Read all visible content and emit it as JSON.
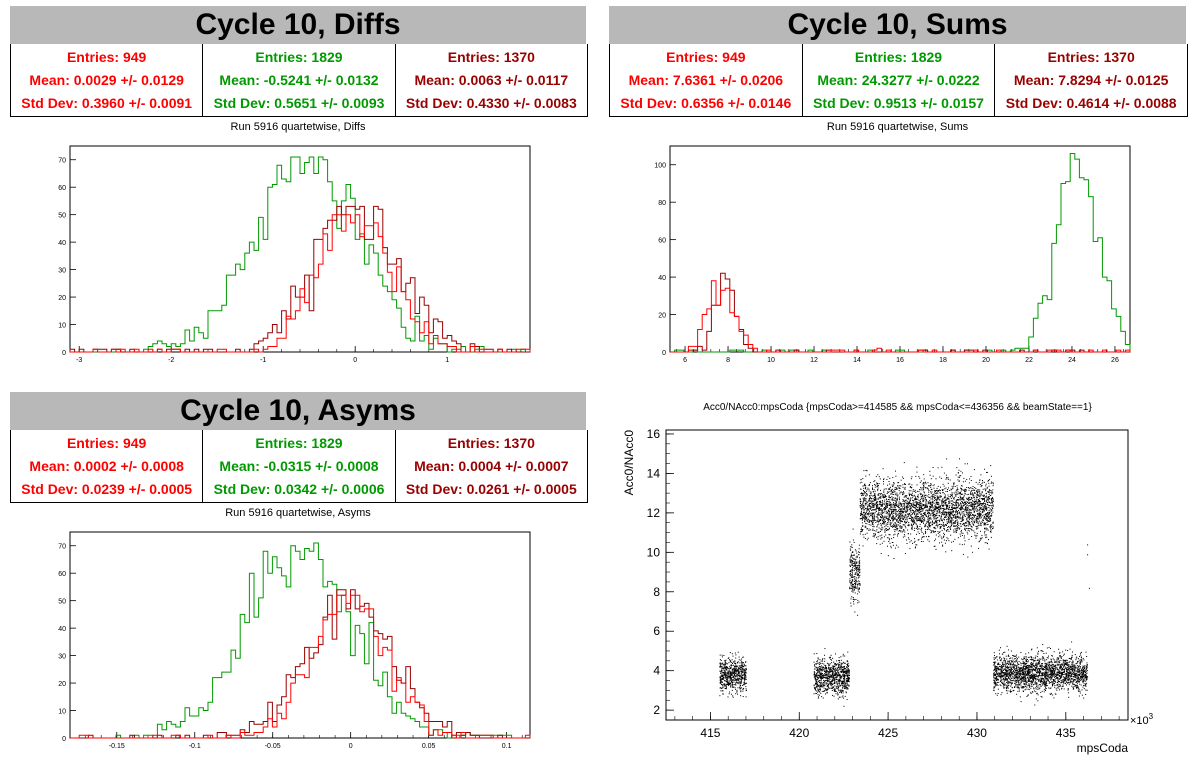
{
  "colors": {
    "red": "#ff0000",
    "green": "#009900",
    "darkred": "#990000",
    "title_bg": "#b8b8b8"
  },
  "panels": {
    "diffs": {
      "title": "Cycle 10, Diffs",
      "stats": [
        {
          "entries": "Entries: 949",
          "mean": "Mean: 0.0029 +/- 0.0129",
          "std": "Std Dev: 0.3960 +/- 0.0091"
        },
        {
          "entries": "Entries: 1829",
          "mean": "Mean: -0.5241 +/- 0.0132",
          "std": "Std Dev: 0.5651 +/- 0.0093"
        },
        {
          "entries": "Entries: 1370",
          "mean": "Mean: 0.0063 +/- 0.0117",
          "std": "Std Dev: 0.4330 +/- 0.0083"
        }
      ],
      "subtitle": "Run 5916 quartetwise, Diffs"
    },
    "sums": {
      "title": "Cycle 10, Sums",
      "stats": [
        {
          "entries": "Entries: 949",
          "mean": "Mean: 7.6361 +/- 0.0206",
          "std": "Std Dev: 0.6356 +/- 0.0146"
        },
        {
          "entries": "Entries: 1829",
          "mean": "Mean: 24.3277 +/- 0.0222",
          "std": "Std Dev: 0.9513 +/- 0.0157"
        },
        {
          "entries": "Entries: 1370",
          "mean": "Mean: 7.8294 +/- 0.0125",
          "std": "Std Dev: 0.4614 +/- 0.0088"
        }
      ],
      "subtitle": "Run 5916 quartetwise, Sums"
    },
    "asyms": {
      "title": "Cycle 10, Asyms",
      "stats": [
        {
          "entries": "Entries: 949",
          "mean": "Mean: 0.0002 +/- 0.0008",
          "std": "Std Dev: 0.0239 +/- 0.0005"
        },
        {
          "entries": "Entries: 1829",
          "mean": "Mean: -0.0315 +/- 0.0008",
          "std": "Std Dev: 0.0342 +/- 0.0006"
        },
        {
          "entries": "Entries: 1370",
          "mean": "Mean: 0.0004 +/- 0.0007",
          "std": "Std Dev: 0.0261 +/- 0.0005"
        }
      ],
      "subtitle": "Run 5916 quartetwise, Asyms"
    },
    "scatter": {
      "title": "Acc0/NAcc0:mpsCoda {mpsCoda>=414585 && mpsCoda<=436356 && beamState==1}",
      "xlabel": "mpsCoda",
      "ylabel": "Acc0/NAcc0",
      "xexp": "×10",
      "xexp_power": "3"
    }
  },
  "chart_data": [
    {
      "type": "bar",
      "subtype": "histogram-step",
      "title": "Run 5916 quartetwise, Diffs",
      "xlim": [
        -3.1,
        1.9
      ],
      "ylim": [
        0,
        75
      ],
      "xticks": [
        -3,
        -2,
        -1,
        0,
        1
      ],
      "yticks": [
        0,
        10,
        20,
        30,
        40,
        50,
        60,
        70
      ],
      "series": [
        {
          "color": "#009900",
          "mean": -0.5241,
          "std": 0.5651,
          "peak": 71,
          "entries": 1829
        },
        {
          "color": "#990000",
          "mean": 0.0063,
          "std": 0.433,
          "peak": 53,
          "entries": 1370
        },
        {
          "color": "#ff0000",
          "mean": 0.0029,
          "std": 0.396,
          "peak": 50,
          "entries": 949
        }
      ]
    },
    {
      "type": "bar",
      "subtype": "histogram-step",
      "title": "Run 5916 quartetwise, Sums",
      "xlim": [
        5.3,
        26.7
      ],
      "ylim": [
        0,
        110
      ],
      "xticks": [
        6,
        8,
        10,
        12,
        14,
        16,
        18,
        20,
        22,
        24,
        26
      ],
      "yticks": [
        0,
        20,
        40,
        60,
        80,
        100
      ],
      "series": [
        {
          "color": "#009900",
          "mean": 24.3277,
          "std": 0.9513,
          "peak": 106,
          "entries": 1829
        },
        {
          "color": "#990000",
          "mean": 7.8294,
          "std": 0.4614,
          "peak": 42,
          "entries": 1370
        },
        {
          "color": "#ff0000",
          "mean": 7.6361,
          "std": 0.6356,
          "peak": 38,
          "entries": 949
        }
      ]
    },
    {
      "type": "bar",
      "subtype": "histogram-step",
      "title": "Run 5916 quartetwise, Asyms",
      "xlim": [
        -0.18,
        0.115
      ],
      "ylim": [
        0,
        75
      ],
      "xticks": [
        -0.15,
        -0.1,
        -0.05,
        0,
        0.05,
        0.1
      ],
      "yticks": [
        0,
        10,
        20,
        30,
        40,
        50,
        60,
        70
      ],
      "series": [
        {
          "color": "#009900",
          "mean": -0.0315,
          "std": 0.0342,
          "peak": 71,
          "entries": 1829
        },
        {
          "color": "#990000",
          "mean": 0.0004,
          "std": 0.0261,
          "peak": 54,
          "entries": 1370
        },
        {
          "color": "#ff0000",
          "mean": 0.0002,
          "std": 0.0239,
          "peak": 52,
          "entries": 949
        }
      ]
    },
    {
      "type": "scatter",
      "title": "Acc0/NAcc0:mpsCoda {mpsCoda>=414585 && mpsCoda<=436356 && beamState==1}",
      "xlabel": "mpsCoda",
      "ylabel": "Acc0/NAcc0",
      "xlim": [
        412.5,
        438.5
      ],
      "ylim": [
        1.5,
        16.2
      ],
      "xticks": [
        415,
        420,
        425,
        430,
        435
      ],
      "yticks": [
        2,
        4,
        6,
        8,
        10,
        12,
        14,
        16
      ],
      "clusters": [
        {
          "x": [
            415.5,
            417.0
          ],
          "ymean": 3.8,
          "yspread": 0.45
        },
        {
          "x": [
            420.8,
            422.8
          ],
          "ymean": 3.7,
          "yspread": 0.45
        },
        {
          "x": [
            422.8,
            423.4
          ],
          "ymean": 9.0,
          "yspread": 0.7
        },
        {
          "x": [
            423.4,
            430.9
          ],
          "ymean": 12.2,
          "yspread": 0.75
        },
        {
          "x": [
            430.9,
            436.2
          ],
          "ymean": 3.9,
          "yspread": 0.45
        }
      ]
    }
  ]
}
